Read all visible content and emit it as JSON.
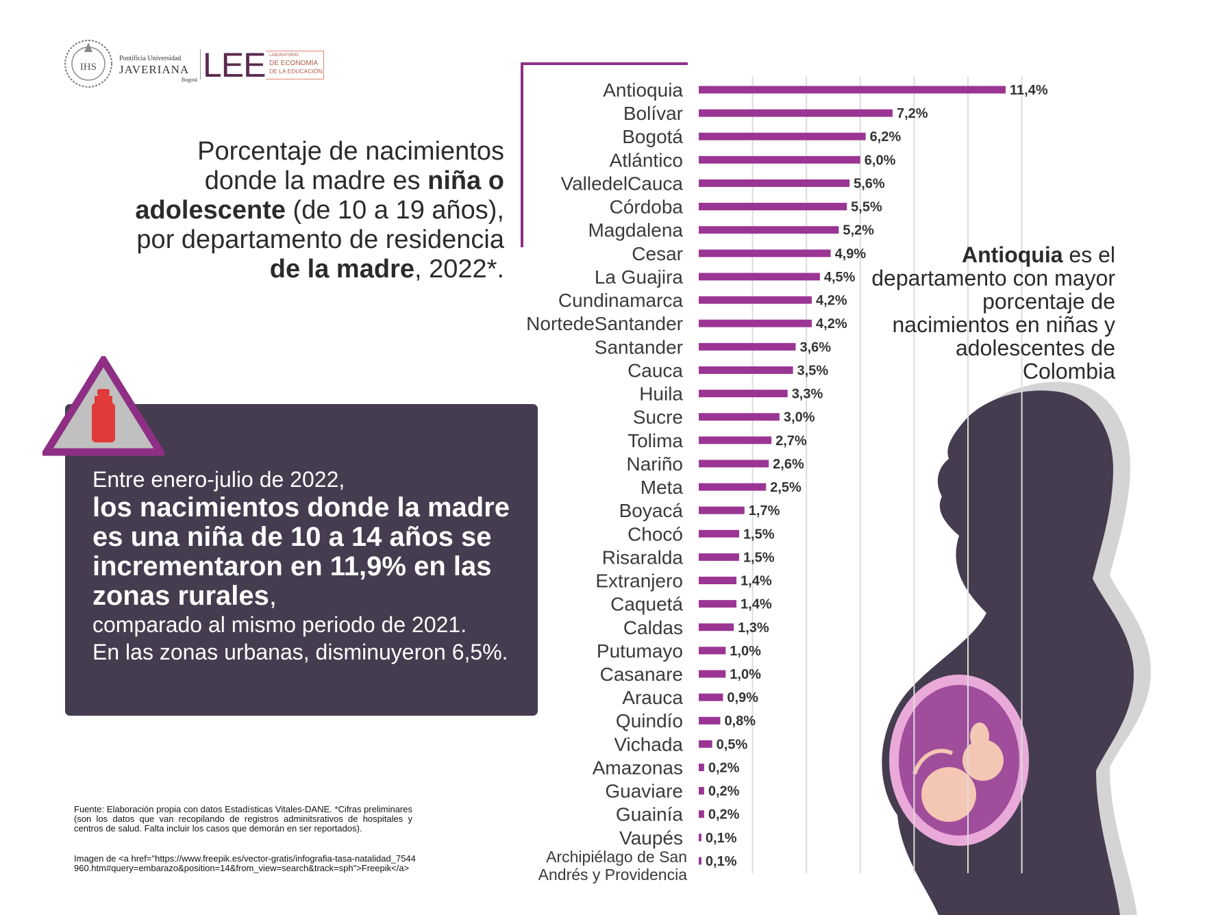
{
  "header": {
    "university_line1": "Pontificia Universidad",
    "university_line2": "JAVERIANA",
    "university_line3": "Bogotá",
    "seal_text": "IHS",
    "lee_mark": "LEE",
    "lee_line1": "LABORATORIO",
    "lee_line2a": "DE ECONOMÍA",
    "lee_line2b": "DE LA EDUCACIÓN"
  },
  "title": {
    "line1": "Porcentaje de nacimientos",
    "line2_pre": "donde la madre es ",
    "line2_bold": "niña o",
    "line3_bold": "adolescente",
    "line3_post": " (de 10 a 19 años),",
    "line4": "por departamento de residencia",
    "line5_bold": "de la madre",
    "line5_post": ", 2022*."
  },
  "info_panel": {
    "lead": "Entre enero-julio de 2022,",
    "highlight": "los nacimientos donde la madre es una niña de 10 a 14 años se incrementaron en 11,9% en las zonas rurales",
    "comma": ",",
    "tail": "comparado al mismo periodo de 2021.",
    "urban": "En las zonas urbanas,  disminuyeron 6,5%."
  },
  "callout": {
    "bold": "Antioquia",
    "rest": " es el departamento con mayor porcentaje de nacimientos en niñas y adolescentes de Colombia"
  },
  "source": {
    "note": "Fuente: Elaboración propia con datos Estadísticas Vitales-DANE. *Cifras preliminares (son los datos que van recopilando de registros adminitsrativos de hospitales y centros de salud. Falta incluir los casos que demorán en ser reportados).",
    "image_credit": "Imagen de <a href=\"https://www.freepik.es/vector-gratis/infografia-tasa-natalidad_7544960.htm#query=embarazo&position=14&from_view=search&track=sph\">Freepik</a>"
  },
  "colors": {
    "bar": "#9b3594",
    "panel": "#453c4f",
    "accent": "#8e2f85",
    "silhouette": "#453c4f",
    "shadow": "#d4d4d4",
    "womb": "#e9a9d9",
    "womb_inner": "#a04d9b",
    "fetus": "#f4c6b4",
    "icon_triangle": "#8e2f85",
    "icon_fill": "#c0c0c0",
    "icon_bottle": "#e03a3a"
  },
  "chart_data": {
    "type": "bar",
    "orientation": "horizontal",
    "title": "Porcentaje de nacimientos donde la madre es niña o adolescente (de 10 a 19 años), por departamento de residencia de la madre, 2022*.",
    "xlim": [
      0,
      12
    ],
    "grid": true,
    "categories": [
      "Antioquia",
      "Bolívar",
      "Bogotá",
      "Atlántico",
      "ValledelCauca",
      "Córdoba",
      "Magdalena",
      "Cesar",
      "La Guajira",
      "Cundinamarca",
      "NortedeSantander",
      "Santander",
      "Cauca",
      "Huila",
      "Sucre",
      "Tolima",
      "Nariño",
      "Meta",
      "Boyacá",
      "Chocó",
      "Risaralda",
      "Extranjero",
      "Caquetá",
      "Caldas",
      "Putumayo",
      "Casanare",
      "Arauca",
      "Quindío",
      "Vichada",
      "Amazonas",
      "Guaviare",
      "Guainía",
      "Vaupés",
      "Archipiélago de San Andrés y Providencia"
    ],
    "values": [
      11.4,
      7.2,
      6.2,
      6.0,
      5.6,
      5.5,
      5.2,
      4.9,
      4.5,
      4.2,
      4.2,
      3.6,
      3.5,
      3.3,
      3.0,
      2.7,
      2.6,
      2.5,
      1.7,
      1.5,
      1.5,
      1.4,
      1.4,
      1.3,
      1.0,
      1.0,
      0.9,
      0.8,
      0.5,
      0.2,
      0.2,
      0.2,
      0.1,
      0.1
    ],
    "value_labels": [
      "11,4%",
      "7,2%",
      "6,2%",
      "6,0%",
      "5,6%",
      "5,5%",
      "5,2%",
      "4,9%",
      "4,5%",
      "4,2%",
      "4,2%",
      "3,6%",
      "3,5%",
      "3,3%",
      "3,0%",
      "2,7%",
      "2,6%",
      "2,5%",
      "1,7%",
      "1,5%",
      "1,5%",
      "1,4%",
      "1,4%",
      "1,3%",
      "1,0%",
      "1,0%",
      "0,9%",
      "0,8%",
      "0,5%",
      "0,2%",
      "0,2%",
      "0,2%",
      "0,1%",
      "0,1%"
    ],
    "last_category_lines": [
      "Archipiélago de San",
      "Andrés y Providencia"
    ]
  }
}
